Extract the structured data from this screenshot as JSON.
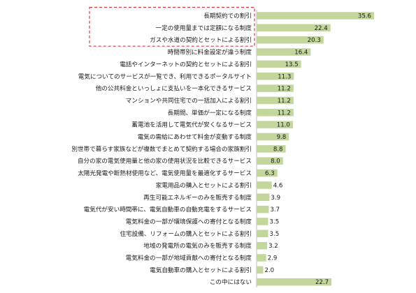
{
  "chart_data": {
    "type": "bar",
    "orientation": "horizontal",
    "categories": [
      "長期契約での割引",
      "一定の使用量までは定額になる制度",
      "ガスや水道の契約とセットによる割引",
      "時間帯別に料金設定が違う制度",
      "電話やインターネットの契約とセットによる割引",
      "電気についてのサービスが一覧でき、利用できるポータルサイト",
      "他の公共料金といっしょに支払いを一本化できるサービス",
      "マンションや共同住宅での一括加入による割引",
      "長期間、単価が一定になる制度",
      "蓄電池を活用して電気代が安くなるサービス",
      "電気の需給にあわせて料金が変動する制度",
      "別世帯で暮らす家族などが複数でまとめて契約する場合の家族割引",
      "自分の家の電気使用量と他の家の使用状況を比較できるサービス",
      "太陽光発電や断熱材使用など、電気使用量を最適化するサービス",
      "家電用品の購入とセットによる割引",
      "再生可能エネルギーのみを販売する制度",
      "電気代が安い時間帯に、電気自動車の自動充電をするサービス",
      "電気料金の一部が環境保護への寄付となる制度",
      "住宅設備、リフォームの購入とセットによる割引",
      "地域の発電所の電気のみを販売する制度",
      "電気料金の一部が地域貢献への寄付となる制度",
      "電気自動車の購入とセットによる割引",
      "この中にはない"
    ],
    "values": [
      35.6,
      22.4,
      20.3,
      16.4,
      13.5,
      11.3,
      11.2,
      11.2,
      11.2,
      11.0,
      9.8,
      8.8,
      8.0,
      6.3,
      4.6,
      3.9,
      3.7,
      3.5,
      3.5,
      3.2,
      2.9,
      2.0,
      22.7
    ],
    "value_labels": [
      "35.6",
      "22.4",
      "20.3",
      "16.4",
      "13.5",
      "11.3",
      "11.2",
      "11.2",
      "11.2",
      "11.0",
      "9.8",
      "8.8",
      "8.0",
      "6.3",
      "4.6",
      "3.9",
      "3.7",
      "3.5",
      "3.5",
      "3.2",
      "2.9",
      "2.0",
      "22.7"
    ],
    "xlim": [
      0,
      40
    ],
    "grid": false,
    "legend": "none",
    "highlight": {
      "categories": [
        0,
        1,
        2
      ],
      "style": "dashed-box"
    },
    "colors": {
      "bar": "#c3d69b",
      "axis": "#bfbfbf",
      "highlight": "#e0393e",
      "text": "#1a1a1a"
    }
  }
}
